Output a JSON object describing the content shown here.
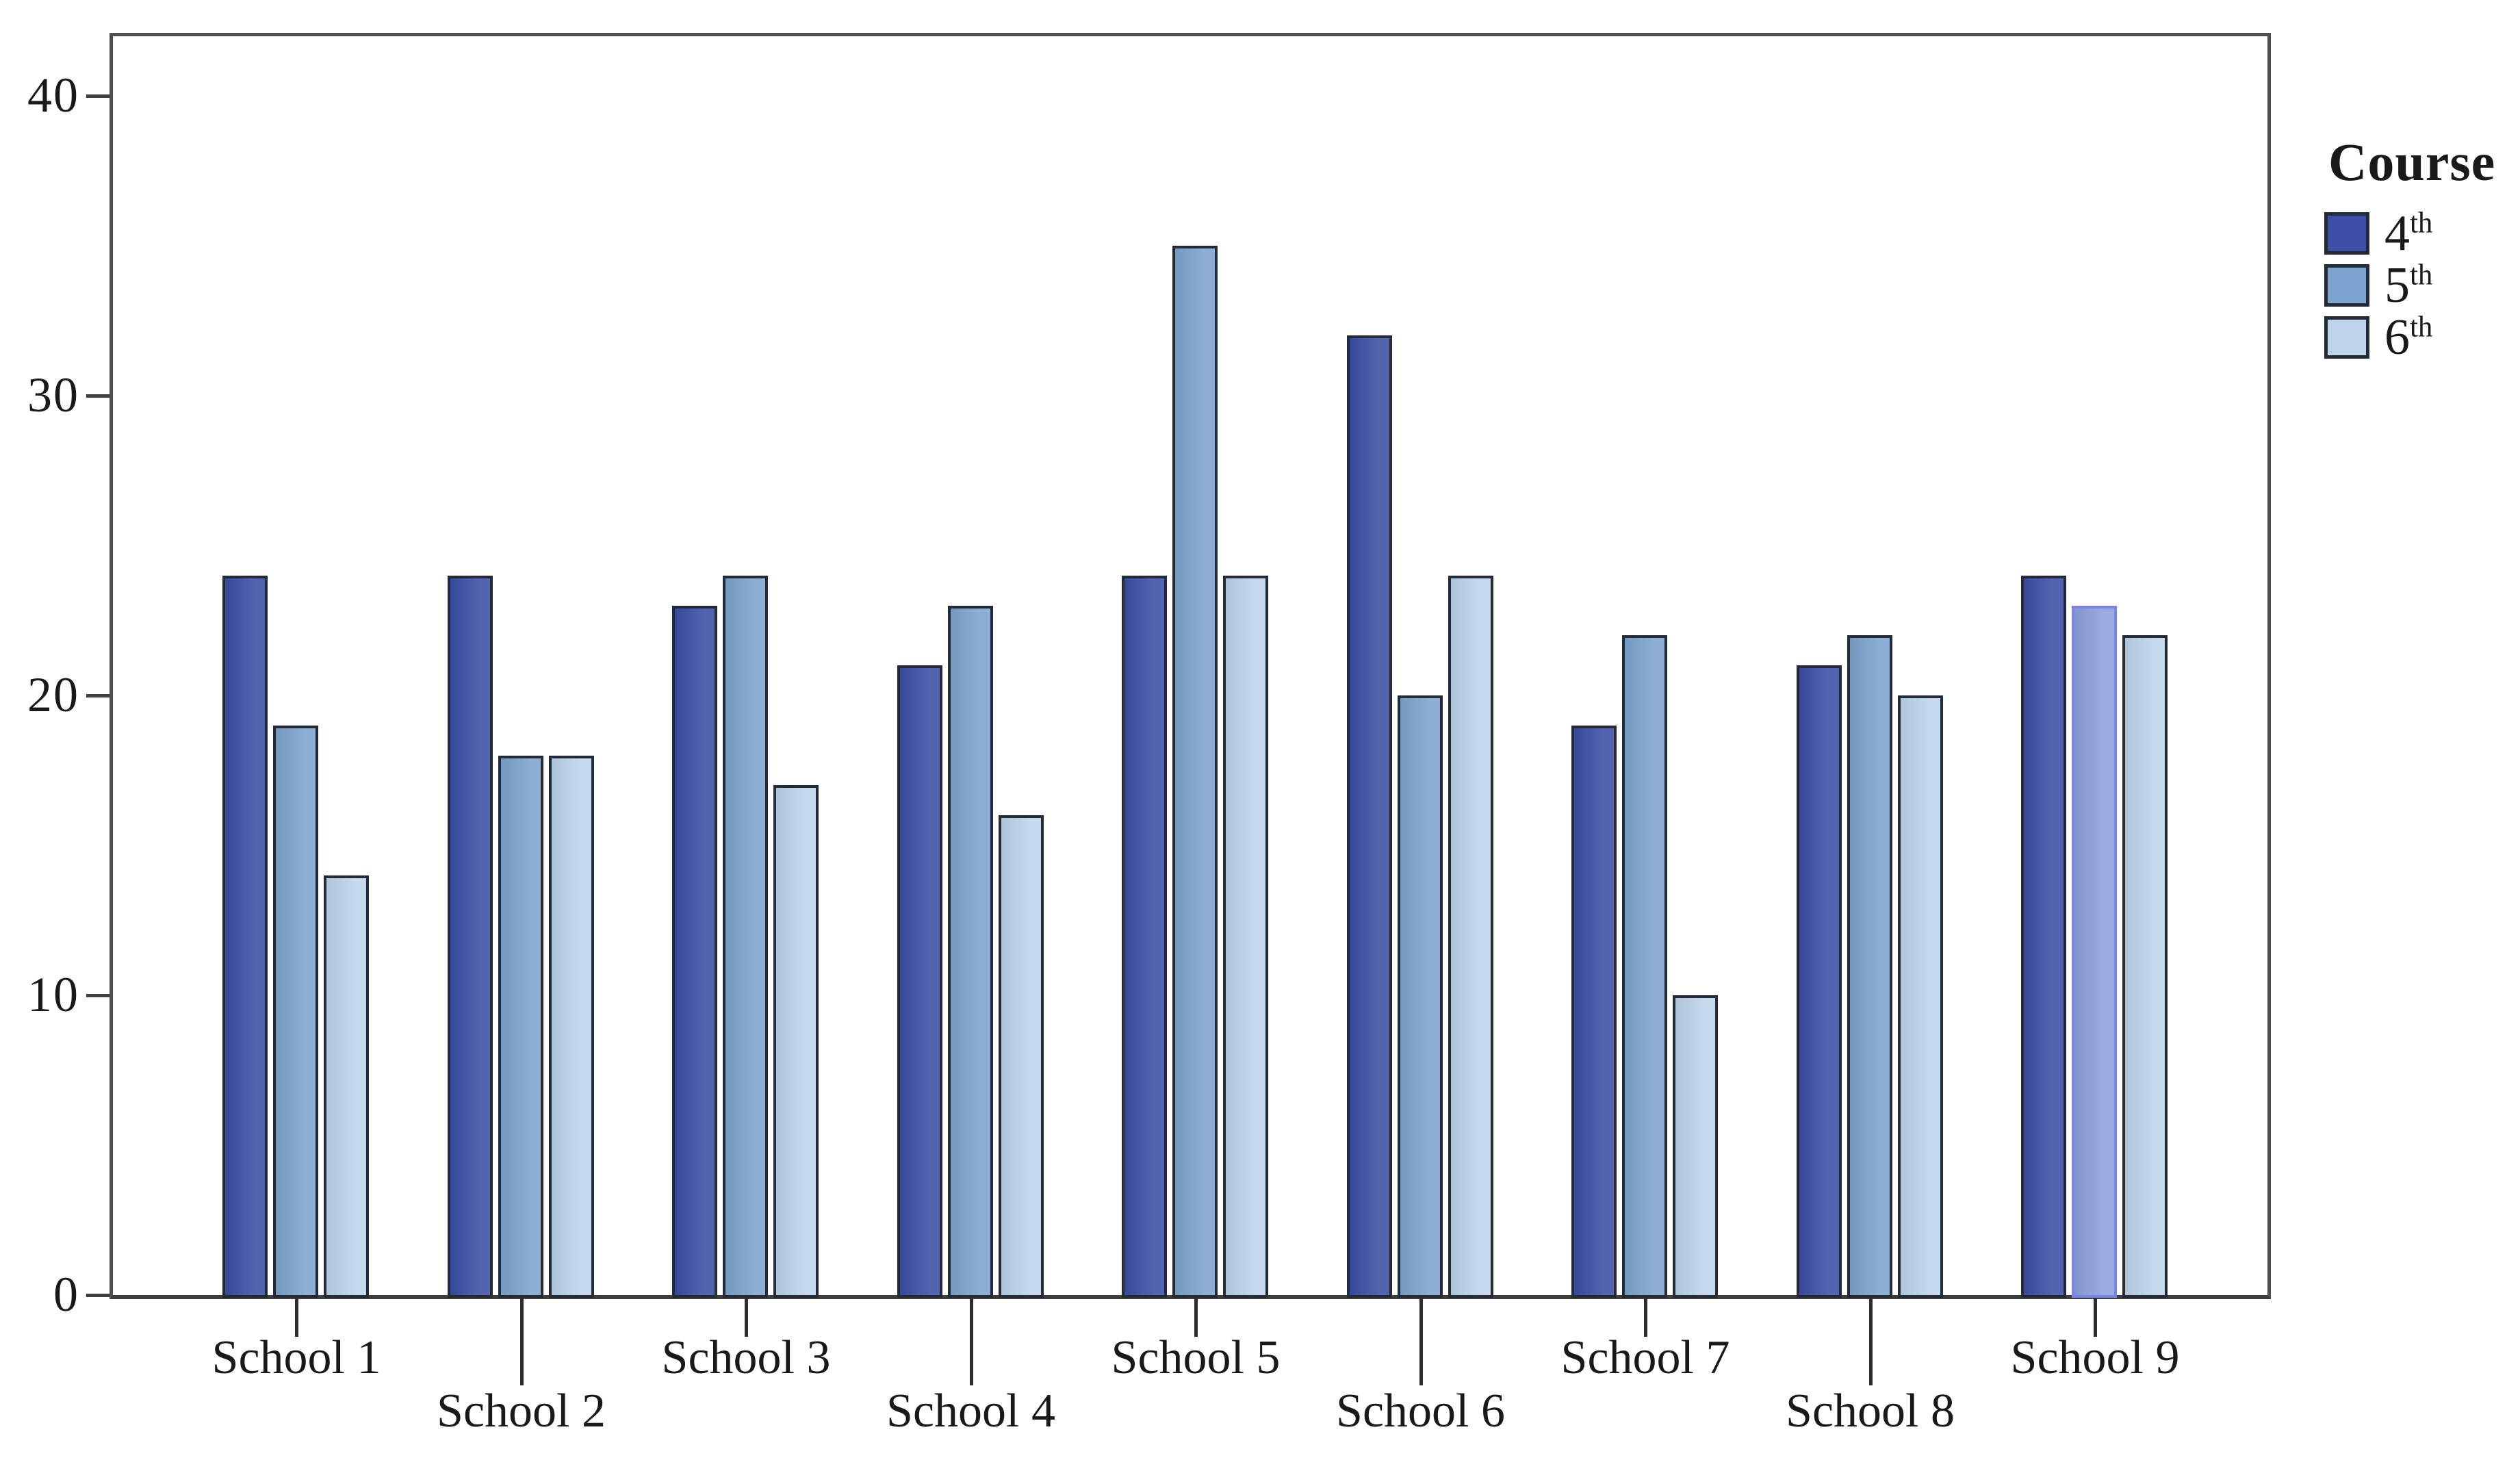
{
  "chart_data": {
    "type": "bar",
    "title": "",
    "legend_title": "Course",
    "legend_position": "right",
    "grid": false,
    "categories": [
      "School 1",
      "School 2",
      "School 3",
      "School 4",
      "School 5",
      "School 6",
      "School 7",
      "School 8",
      "School 9"
    ],
    "series": [
      {
        "name": "4th",
        "label_base": "4",
        "label_sup": "th",
        "color": "#3A4FA5",
        "values": [
          24,
          24,
          23,
          21,
          24,
          32,
          19,
          21,
          24
        ]
      },
      {
        "name": "5th",
        "label_base": "5",
        "label_sup": "th",
        "color": "#7DA4CF",
        "values": [
          19,
          18,
          24,
          23,
          35,
          20,
          22,
          22,
          23
        ]
      },
      {
        "name": "6th",
        "label_base": "6",
        "label_sup": "th",
        "color": "#BCD5EA",
        "values": [
          14,
          18,
          17,
          16,
          24,
          24,
          10,
          20,
          22
        ]
      }
    ],
    "ylim": [
      0,
      40
    ],
    "yticks": [
      40,
      30,
      20,
      10,
      0
    ],
    "bar_outline": "#252B36",
    "frame_color": "#4f4f4f",
    "highlight": {
      "category_index": 8,
      "series_index": 1,
      "outline": "#7B82EE",
      "fill": "#8CA2DC"
    }
  }
}
